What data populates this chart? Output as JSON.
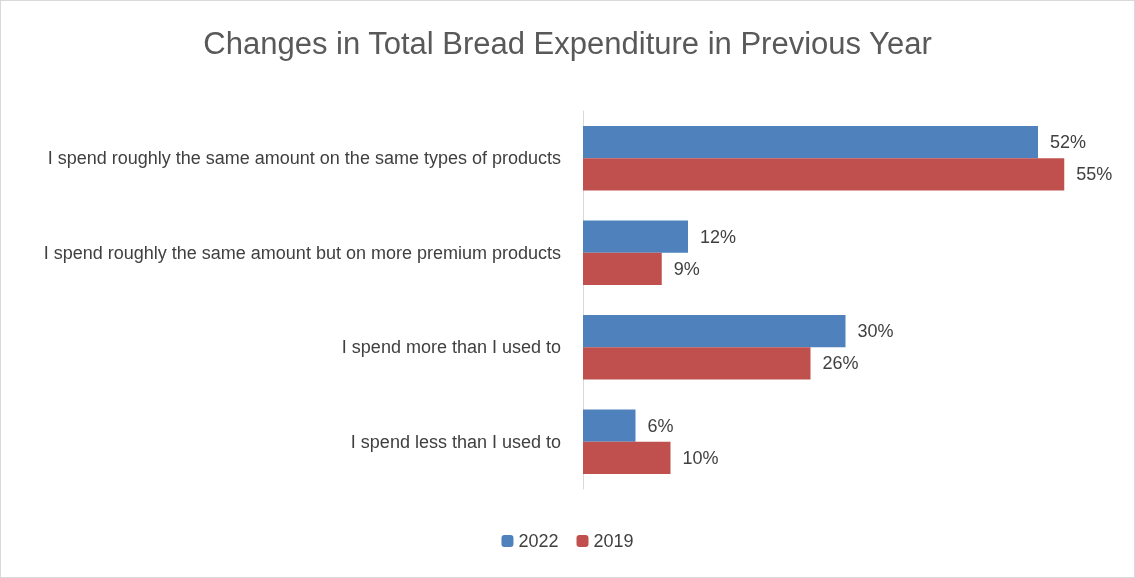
{
  "chart_data": {
    "type": "bar",
    "orientation": "horizontal",
    "title": "Changes in Total Bread Expenditure in Previous Year",
    "categories": [
      "I spend roughly the same amount on the same types of products",
      "I spend roughly the same amount but on more premium products",
      "I spend more than I used to",
      "I spend less than I used to"
    ],
    "series": [
      {
        "name": "2022",
        "color": "#4f81bd",
        "values": [
          52,
          12,
          30,
          6
        ],
        "value_labels": [
          "52%",
          "12%",
          "30%",
          "6%"
        ]
      },
      {
        "name": "2019",
        "color": "#c0504d",
        "values": [
          55,
          9,
          26,
          10
        ],
        "value_labels": [
          "55%",
          "9%",
          "26%",
          "10%"
        ]
      }
    ],
    "legend": "bottom",
    "tick_labels": "y"
  }
}
